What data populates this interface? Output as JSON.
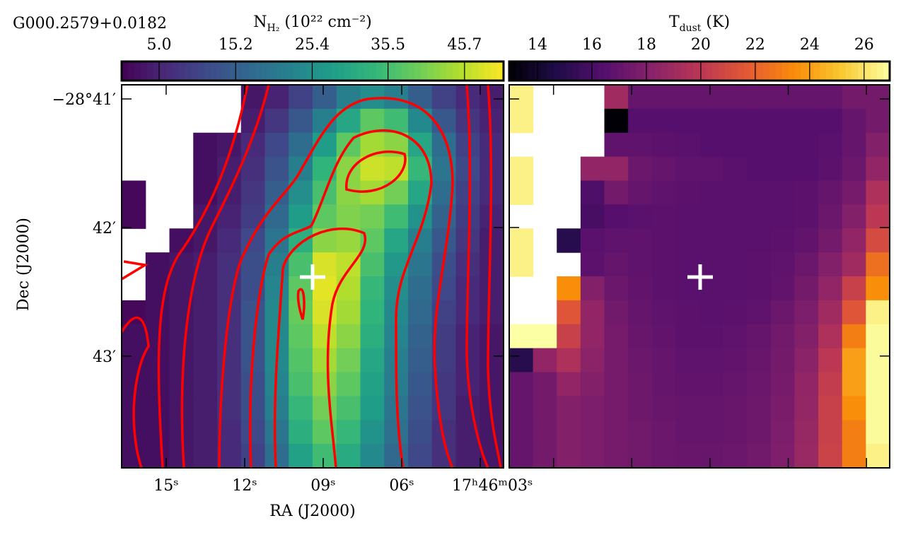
{
  "chart_data": [
    {
      "type": "heatmap",
      "title": "G000.2579+0.0182",
      "colorbar_label": {
        "main": "N",
        "sub": "H₂",
        "rest": " (10²² cm⁻²)"
      },
      "colormap": "viridis",
      "clim": [
        0,
        50.9
      ],
      "cticks": [
        {
          "value": 5,
          "label": "5.0"
        },
        15.2,
        25.4,
        35.5,
        45.7
      ],
      "xlabel": "RA (J2000)",
      "ylabel": "Dec (J2000)",
      "xlim": [
        16.7,
        2.11
      ],
      "ylim": [
        40.89,
        43.87
      ],
      "xticks": [
        {
          "value": 15,
          "label": "15ˢ"
        },
        {
          "value": 12,
          "label": "12ˢ"
        },
        {
          "value": 9,
          "label": "09ˢ"
        },
        {
          "value": 6,
          "label": "06ˢ"
        },
        {
          "value": 3,
          "label": "17ʰ46ᵐ03ˢ"
        }
      ],
      "yticks": [
        {
          "value": 41,
          "label": "−28°41′"
        },
        {
          "value": 42,
          "label": "42′"
        },
        {
          "value": 43,
          "label": "43′"
        }
      ],
      "values": [
        [
          null,
          null,
          null,
          null,
          null,
          3,
          5,
          10,
          15,
          22,
          25,
          22,
          15,
          10,
          6,
          4
        ],
        [
          null,
          null,
          null,
          null,
          null,
          4,
          8,
          14,
          22,
          30,
          38,
          35,
          24,
          14,
          8,
          5
        ],
        [
          null,
          null,
          null,
          2,
          3,
          6,
          11,
          18,
          28,
          38,
          44,
          42,
          30,
          18,
          10,
          6
        ],
        [
          null,
          null,
          null,
          2,
          4,
          7,
          13,
          22,
          33,
          42,
          47,
          46,
          34,
          20,
          11,
          6
        ],
        [
          1,
          null,
          null,
          2,
          4,
          8,
          15,
          25,
          36,
          42,
          44,
          40,
          30,
          18,
          10,
          6
        ],
        [
          1,
          null,
          null,
          3,
          5,
          9,
          17,
          28,
          38,
          41,
          40,
          35,
          26,
          16,
          9,
          5
        ],
        [
          null,
          null,
          2,
          3,
          6,
          11,
          20,
          32,
          42,
          43,
          38,
          30,
          22,
          14,
          8,
          4
        ],
        [
          null,
          2,
          3,
          4,
          7,
          12,
          22,
          36,
          48,
          46,
          36,
          27,
          20,
          12,
          7,
          4
        ],
        [
          null,
          2,
          3,
          4,
          7,
          12,
          23,
          38,
          49,
          45,
          34,
          25,
          18,
          11,
          6,
          4
        ],
        [
          1,
          2,
          3,
          4,
          7,
          13,
          24,
          39,
          48,
          44,
          33,
          24,
          17,
          10,
          6,
          4
        ],
        [
          2,
          2,
          3,
          4,
          7,
          13,
          24,
          38,
          46,
          42,
          32,
          23,
          16,
          9,
          5,
          3
        ],
        [
          2,
          2,
          3,
          4,
          7,
          13,
          24,
          37,
          44,
          40,
          30,
          22,
          15,
          9,
          5,
          3
        ],
        [
          2,
          2,
          3,
          4,
          7,
          12,
          23,
          36,
          42,
          38,
          29,
          21,
          14,
          8,
          5,
          3
        ],
        [
          2,
          2,
          3,
          4,
          7,
          12,
          22,
          34,
          40,
          36,
          28,
          20,
          13,
          8,
          4,
          3
        ],
        [
          2,
          2,
          3,
          4,
          6,
          11,
          20,
          32,
          38,
          34,
          26,
          19,
          12,
          7,
          4,
          3
        ],
        [
          2,
          2,
          3,
          4,
          6,
          10,
          18,
          29,
          35,
          31,
          24,
          17,
          11,
          7,
          4,
          3
        ]
      ]
    },
    {
      "type": "heatmap",
      "colorbar_label": {
        "main": "T",
        "sub": "dust",
        "rest": " (K)"
      },
      "colormap": "inferno",
      "clim": [
        12.96,
        26.94
      ],
      "cticks": [
        14,
        16,
        18,
        20,
        22,
        24,
        26
      ],
      "values": [
        [
          26.5,
          null,
          null,
          null,
          19,
          17,
          17,
          17,
          17,
          17,
          17,
          17,
          17,
          17,
          17.5,
          17.5
        ],
        [
          26.5,
          null,
          null,
          null,
          13,
          16.5,
          16.5,
          16.5,
          16.5,
          16.5,
          16.5,
          16.5,
          16.5,
          16.5,
          17,
          17.5
        ],
        [
          null,
          null,
          null,
          null,
          16.8,
          16.8,
          16.7,
          16.6,
          16.5,
          16.5,
          16.5,
          16.5,
          16.5,
          16.6,
          17,
          18
        ],
        [
          26.5,
          null,
          null,
          18.5,
          18.5,
          17.2,
          17,
          16.8,
          16.8,
          16.6,
          16.5,
          16.5,
          16.5,
          16.7,
          17.2,
          18.5
        ],
        [
          26.5,
          null,
          null,
          16.2,
          17.5,
          17,
          16.8,
          16.7,
          16.6,
          16.6,
          16.6,
          16.6,
          16.7,
          17,
          17.6,
          19.5
        ],
        [
          null,
          null,
          null,
          16,
          16.5,
          16.6,
          16.7,
          16.6,
          16.6,
          16.6,
          16.6,
          16.6,
          16.7,
          17.2,
          18,
          20
        ],
        [
          26.5,
          null,
          15,
          16.6,
          16.8,
          16.8,
          16.7,
          16.6,
          16.6,
          16.6,
          16.6,
          16.7,
          16.9,
          17.5,
          18.5,
          21
        ],
        [
          26.5,
          null,
          null,
          16.7,
          17,
          16.8,
          16.7,
          16.6,
          16.6,
          16.6,
          16.7,
          16.8,
          17.2,
          18,
          19,
          22.5
        ],
        [
          null,
          null,
          23.5,
          18,
          17.2,
          16.9,
          16.7,
          16.6,
          16.6,
          16.6,
          16.7,
          16.9,
          17.5,
          18.5,
          20.5,
          23.5
        ],
        [
          null,
          null,
          21.5,
          18.5,
          17.4,
          17,
          16.8,
          16.7,
          16.6,
          16.7,
          16.8,
          17.2,
          17.8,
          19,
          21.5,
          26.5
        ],
        [
          27,
          27,
          20.5,
          18.5,
          17.6,
          17.1,
          16.9,
          16.7,
          16.7,
          16.8,
          17,
          17.4,
          18,
          19.5,
          23,
          26.8
        ],
        [
          15,
          18.5,
          19.5,
          18.3,
          17.6,
          17.2,
          17,
          16.8,
          16.8,
          16.9,
          17.1,
          17.5,
          18.3,
          20,
          24,
          26.8
        ],
        [
          17,
          17.5,
          18.5,
          18,
          17.6,
          17.3,
          17,
          16.9,
          16.9,
          17,
          17.2,
          17.6,
          18.5,
          20.3,
          24,
          26.8
        ],
        [
          17,
          17.5,
          18,
          17.8,
          17.6,
          17.3,
          17.1,
          17,
          17,
          17.1,
          17.3,
          17.7,
          18.6,
          20.5,
          23.5,
          26.8
        ],
        [
          17,
          17.5,
          18,
          17.8,
          17.6,
          17.4,
          17.2,
          17,
          17,
          17.1,
          17.3,
          17.8,
          18.7,
          20.5,
          23,
          26.8
        ],
        [
          17,
          17.5,
          18,
          17.8,
          17.6,
          17.4,
          17.2,
          17.1,
          17.1,
          17.2,
          17.4,
          17.9,
          18.8,
          20.6,
          23,
          26.5
        ]
      ]
    }
  ]
}
